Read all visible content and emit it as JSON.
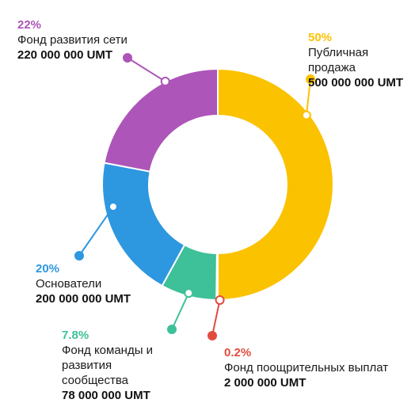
{
  "colors": {
    "public": "#fbc200",
    "network": "#ad55b8",
    "founders": "#2d97e0",
    "team": "#3ec099",
    "reward": "#e24c3e"
  },
  "chart_data": {
    "type": "pie",
    "variant": "donut",
    "slices": [
      {
        "key": "public",
        "percent_label": "50%",
        "value": 50,
        "name": "Публичная продажа",
        "name_lines": [
          "Публичная",
          "продажа"
        ],
        "amount": "500 000 000 UMT"
      },
      {
        "key": "reward",
        "percent_label": "0.2%",
        "value": 0.2,
        "name": "Фонд поощрительных выплат",
        "name_lines": [
          "Фонд поощрительных выплат"
        ],
        "amount": "2 000 000 UMT"
      },
      {
        "key": "team",
        "percent_label": "7.8%",
        "value": 7.8,
        "name": "Фонд команды и развития сообщества",
        "name_lines": [
          "Фонд команды и",
          "развития",
          "сообщества"
        ],
        "amount": "78 000 000 UMT"
      },
      {
        "key": "founders",
        "percent_label": "20%",
        "value": 20,
        "name": "Основатели",
        "name_lines": [
          "Основатели"
        ],
        "amount": "200 000 000 UMT"
      },
      {
        "key": "network",
        "percent_label": "22%",
        "value": 22,
        "name": "Фонд развития сети",
        "name_lines": [
          "Фонд развития сети"
        ],
        "amount": "220 000 000 UMT"
      }
    ]
  }
}
